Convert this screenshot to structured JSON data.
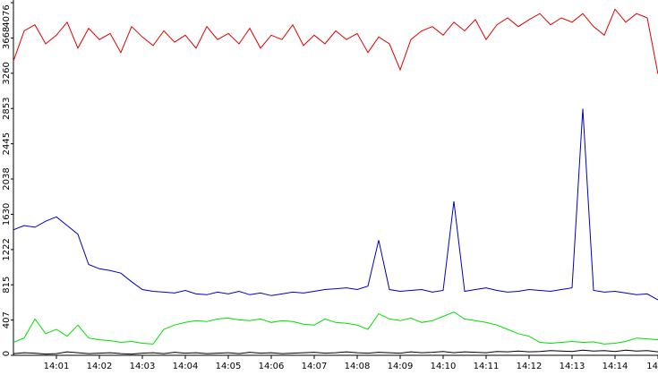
{
  "chart_data": {
    "type": "line",
    "x": [
      0,
      0.25,
      0.5,
      0.75,
      1,
      1.25,
      1.5,
      1.75,
      2,
      2.25,
      2.5,
      2.75,
      3,
      3.25,
      3.5,
      3.75,
      4,
      4.25,
      4.5,
      4.75,
      5,
      5.25,
      5.5,
      5.75,
      6,
      6.25,
      6.5,
      6.75,
      7,
      7.25,
      7.5,
      7.75,
      8,
      8.25,
      8.5,
      8.75,
      9,
      9.25,
      9.5,
      9.75,
      10,
      10.25,
      10.5,
      10.75,
      11,
      11.25,
      11.5,
      11.75,
      12,
      12.25,
      12.5,
      12.75,
      13,
      13.25,
      13.5,
      13.75,
      14,
      14.25,
      14.5,
      14.75,
      15
    ],
    "xlim": [
      0,
      15
    ],
    "xticks": [
      {
        "value": 1,
        "label": "14:01"
      },
      {
        "value": 2,
        "label": "14:02"
      },
      {
        "value": 3,
        "label": "14:03"
      },
      {
        "value": 4,
        "label": "14:04"
      },
      {
        "value": 5,
        "label": "14:05"
      },
      {
        "value": 6,
        "label": "14:06"
      },
      {
        "value": 7,
        "label": "14:07"
      },
      {
        "value": 8,
        "label": "14:08"
      },
      {
        "value": 9,
        "label": "14:09"
      },
      {
        "value": 10,
        "label": "14:10"
      },
      {
        "value": 11,
        "label": "14:11"
      },
      {
        "value": 12,
        "label": "14:12"
      },
      {
        "value": 13,
        "label": "14:13"
      },
      {
        "value": 14,
        "label": "14:14"
      },
      {
        "value": 15,
        "label": "14"
      }
    ],
    "ylim": [
      0,
      4076
    ],
    "yticks": [
      0,
      407,
      815,
      1222,
      1630,
      2038,
      2445,
      2853,
      3260,
      3668,
      4076
    ],
    "series": [
      {
        "color": "#e00000",
        "values": [
          3400,
          3750,
          3820,
          3600,
          3700,
          3850,
          3550,
          3780,
          3650,
          3720,
          3500,
          3800,
          3680,
          3580,
          3750,
          3620,
          3700,
          3550,
          3800,
          3650,
          3720,
          3600,
          3780,
          3550,
          3700,
          3650,
          3820,
          3580,
          3700,
          3600,
          3750,
          3650,
          3720,
          3500,
          3680,
          3600,
          3300,
          3650,
          3750,
          3800,
          3700,
          3850,
          3750,
          3880,
          3650,
          3820,
          3900,
          3800,
          3880,
          3950,
          3820,
          3900,
          3850,
          3950,
          3800,
          3700,
          4000,
          3850,
          3950,
          3900,
          3250
        ]
      },
      {
        "color": "#0000c0",
        "values": [
          1450,
          1500,
          1480,
          1550,
          1600,
          1500,
          1400,
          1050,
          1000,
          980,
          950,
          850,
          760,
          740,
          730,
          720,
          750,
          710,
          700,
          730,
          710,
          740,
          700,
          720,
          690,
          710,
          730,
          720,
          740,
          760,
          770,
          780,
          760,
          800,
          1330,
          760,
          740,
          750,
          760,
          730,
          750,
          1780,
          740,
          760,
          780,
          750,
          730,
          740,
          760,
          750,
          740,
          760,
          780,
          2850,
          750,
          730,
          740,
          720,
          700,
          710,
          640
        ]
      },
      {
        "color": "#00dd00",
        "values": [
          150,
          200,
          420,
          250,
          300,
          220,
          350,
          200,
          180,
          170,
          150,
          160,
          140,
          130,
          300,
          350,
          380,
          400,
          390,
          420,
          430,
          410,
          400,
          420,
          380,
          400,
          390,
          360,
          350,
          420,
          380,
          370,
          350,
          300,
          480,
          420,
          400,
          430,
          380,
          400,
          450,
          500,
          420,
          400,
          380,
          350,
          300,
          250,
          220,
          150,
          140,
          150,
          160,
          150,
          155,
          130,
          140,
          160,
          200,
          190,
          180
        ]
      },
      {
        "color": "#000000",
        "values": [
          20,
          30,
          25,
          15,
          20,
          40,
          30,
          20,
          25,
          30,
          20,
          15,
          25,
          30,
          20,
          35,
          25,
          30,
          20,
          25,
          30,
          20,
          35,
          25,
          30,
          20,
          25,
          30,
          35,
          25,
          30,
          40,
          30,
          25,
          35,
          30,
          25,
          40,
          30,
          35,
          45,
          30,
          40,
          35,
          30,
          45,
          40,
          50,
          40,
          45,
          55,
          50,
          45,
          60,
          50,
          55,
          45,
          60,
          50,
          55,
          40
        ]
      }
    ]
  }
}
